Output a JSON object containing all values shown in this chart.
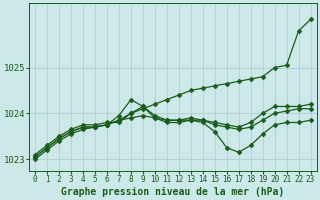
{
  "xlabel": "Graphe pression niveau de la mer (hPa)",
  "bg_color": "#cce8e8",
  "grid_color": "#aacccc",
  "line_color": "#1a5c1a",
  "x": [
    0,
    1,
    2,
    3,
    4,
    5,
    6,
    7,
    8,
    9,
    10,
    11,
    12,
    13,
    14,
    15,
    16,
    17,
    18,
    19,
    20,
    21,
    22,
    23
  ],
  "series": [
    [
      1023.0,
      1023.2,
      1023.4,
      1023.55,
      1023.65,
      1023.7,
      1023.75,
      1023.85,
      1024.0,
      1024.1,
      1024.2,
      1024.3,
      1024.4,
      1024.5,
      1024.55,
      1024.6,
      1024.65,
      1024.7,
      1024.75,
      1024.8,
      1025.0,
      1025.05,
      1025.8,
      1026.05
    ],
    [
      1023.1,
      1023.3,
      1023.5,
      1023.65,
      1023.75,
      1023.75,
      1023.8,
      1023.8,
      1024.0,
      1024.15,
      1023.95,
      1023.85,
      1023.85,
      1023.9,
      1023.85,
      1023.8,
      1023.75,
      1023.7,
      1023.8,
      1024.0,
      1024.15,
      1024.15,
      1024.15,
      1024.2
    ],
    [
      1023.05,
      1023.25,
      1023.45,
      1023.6,
      1023.7,
      1023.7,
      1023.75,
      1023.95,
      1024.3,
      1024.15,
      1023.9,
      1023.8,
      1023.8,
      1023.85,
      1023.8,
      1023.6,
      1023.25,
      1023.15,
      1023.3,
      1023.55,
      1023.75,
      1023.8,
      1023.8,
      1023.85
    ],
    [
      1023.05,
      1023.25,
      1023.45,
      1023.6,
      1023.7,
      1023.7,
      1023.75,
      1023.85,
      1023.9,
      1023.95,
      1023.9,
      1023.85,
      1023.85,
      1023.85,
      1023.85,
      1023.75,
      1023.7,
      1023.65,
      1023.7,
      1023.85,
      1024.0,
      1024.05,
      1024.1,
      1024.1
    ]
  ],
  "ylim": [
    1022.75,
    1026.4
  ],
  "yticks": [
    1023,
    1024,
    1025
  ],
  "xticks": [
    0,
    1,
    2,
    3,
    4,
    5,
    6,
    7,
    8,
    9,
    10,
    11,
    12,
    13,
    14,
    15,
    16,
    17,
    18,
    19,
    20,
    21,
    22,
    23
  ],
  "marker": "D",
  "markersize": 2.5,
  "linewidth": 0.9,
  "xlabel_fontsize": 7,
  "ytick_fontsize": 6.5,
  "xtick_fontsize": 5.5,
  "xlabel_bold": true,
  "figsize": [
    3.2,
    2.0
  ],
  "dpi": 100
}
